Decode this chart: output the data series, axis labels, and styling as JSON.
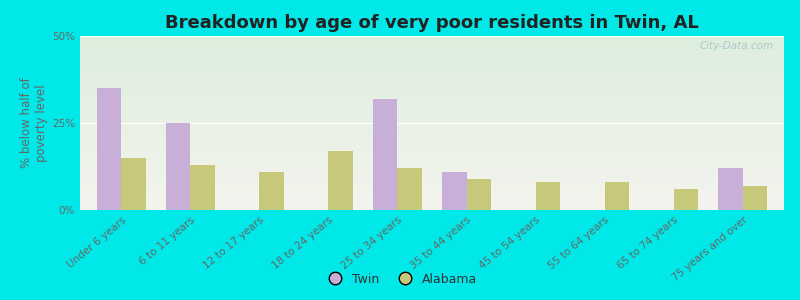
{
  "title": "Breakdown by age of very poor residents in Twin, AL",
  "ylabel": "% below half of\npoverty level",
  "categories": [
    "Under 6 years",
    "6 to 11 years",
    "12 to 17 years",
    "18 to 24 years",
    "25 to 34 years",
    "35 to 44 years",
    "45 to 54 years",
    "55 to 64 years",
    "65 to 74 years",
    "75 years and over"
  ],
  "twin_values": [
    35.0,
    25.0,
    0.0,
    0.0,
    32.0,
    11.0,
    0.0,
    0.0,
    0.0,
    12.0
  ],
  "alabama_values": [
    15.0,
    13.0,
    11.0,
    17.0,
    12.0,
    9.0,
    8.0,
    8.0,
    6.0,
    7.0
  ],
  "twin_color": "#c8afd8",
  "alabama_color": "#c8c87a",
  "background_outer": "#00e8e8",
  "background_plot_top": "#ddeedd",
  "background_plot_bottom": "#f4f4ee",
  "ylim": [
    0,
    50
  ],
  "yticks": [
    0,
    25,
    50
  ],
  "ytick_labels": [
    "0%",
    "25%",
    "50%"
  ],
  "bar_width": 0.35,
  "title_fontsize": 13,
  "ylabel_fontsize": 8.5,
  "tick_fontsize": 7.5,
  "legend_fontsize": 9,
  "watermark": "City-Data.com",
  "watermark_color": "#aacccc"
}
